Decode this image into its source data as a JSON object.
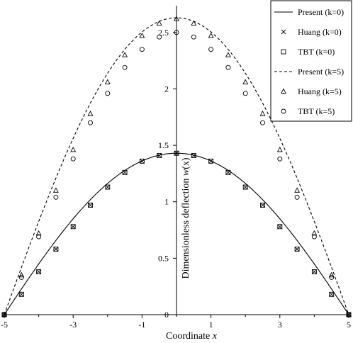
{
  "chart_data": {
    "type": "line",
    "xlabel": "Coordinate ",
    "xlabel_var": "x",
    "ylabel": "Dimensionless deflection ",
    "ylabel_var": "w",
    "ylabel_arg": "(x)",
    "xlim": [
      -5,
      5
    ],
    "ylim": [
      0,
      2.75
    ],
    "xticks": [
      -5,
      -3,
      -1,
      1,
      3,
      5
    ],
    "xtick_labels": [
      "-5",
      "-3",
      "-1",
      "1",
      "3",
      "5"
    ],
    "yticks": [
      0,
      0.5,
      1,
      1.5,
      2,
      2.5
    ],
    "ytick_labels": [
      "0",
      "0.5",
      "1",
      "1.5",
      "2",
      "2.5"
    ],
    "legend_position": "top-right",
    "grid": false,
    "series": [
      {
        "name": "Present (k=0)",
        "kind": "line",
        "style": "solid",
        "curve": {
          "peak": 1.43
        }
      },
      {
        "name": "Huang (k=0)",
        "kind": "marker",
        "marker": "cross",
        "x": [
          -5,
          -4.5,
          -4,
          -3.5,
          -3,
          -2.5,
          -2,
          -1.5,
          -1,
          -0.5,
          0,
          0.5,
          1,
          1.5,
          2,
          2.5,
          3,
          3.5,
          4,
          4.5,
          5
        ],
        "y": [
          0,
          0.18,
          0.38,
          0.58,
          0.78,
          0.97,
          1.13,
          1.26,
          1.36,
          1.41,
          1.43,
          1.41,
          1.36,
          1.26,
          1.13,
          0.97,
          0.78,
          0.58,
          0.38,
          0.18,
          0
        ]
      },
      {
        "name": "TBT (k=0)",
        "kind": "marker",
        "marker": "square",
        "x": [
          -5,
          -4.5,
          -4,
          -3.5,
          -3,
          -2.5,
          -2,
          -1.5,
          -1,
          -0.5,
          0,
          0.5,
          1,
          1.5,
          2,
          2.5,
          3,
          3.5,
          4,
          4.5,
          5
        ],
        "y": [
          0,
          0.18,
          0.38,
          0.58,
          0.78,
          0.97,
          1.13,
          1.26,
          1.36,
          1.41,
          1.43,
          1.41,
          1.36,
          1.26,
          1.13,
          0.97,
          0.78,
          0.58,
          0.38,
          0.18,
          0
        ]
      },
      {
        "name": "Present (k=5)",
        "kind": "line",
        "style": "dashed",
        "curve": {
          "peak": 2.63
        }
      },
      {
        "name": "Huang (k=5)",
        "kind": "marker",
        "marker": "triangle",
        "x": [
          -5,
          -4.5,
          -4,
          -3.5,
          -3,
          -2.5,
          -2,
          -1.5,
          -1,
          -0.5,
          0,
          0.5,
          1,
          1.5,
          2,
          2.5,
          3,
          3.5,
          4,
          4.5,
          5
        ],
        "y": [
          0,
          0.35,
          0.72,
          1.1,
          1.46,
          1.78,
          2.06,
          2.3,
          2.47,
          2.58,
          2.62,
          2.58,
          2.47,
          2.3,
          2.06,
          1.78,
          1.46,
          1.1,
          0.72,
          0.35,
          0
        ]
      },
      {
        "name": "TBT (k=5)",
        "kind": "marker",
        "marker": "circle",
        "x": [
          -5,
          -4.5,
          -4,
          -3.5,
          -3,
          -2.5,
          -2,
          -1.5,
          -1,
          -0.5,
          0,
          0.5,
          1,
          1.5,
          2,
          2.5,
          3,
          3.5,
          4,
          4.5,
          5
        ],
        "y": [
          0,
          0.33,
          0.69,
          1.04,
          1.38,
          1.7,
          1.96,
          2.19,
          2.35,
          2.46,
          2.5,
          2.46,
          2.35,
          2.19,
          1.96,
          1.7,
          1.38,
          1.04,
          0.69,
          0.33,
          0
        ]
      }
    ]
  }
}
